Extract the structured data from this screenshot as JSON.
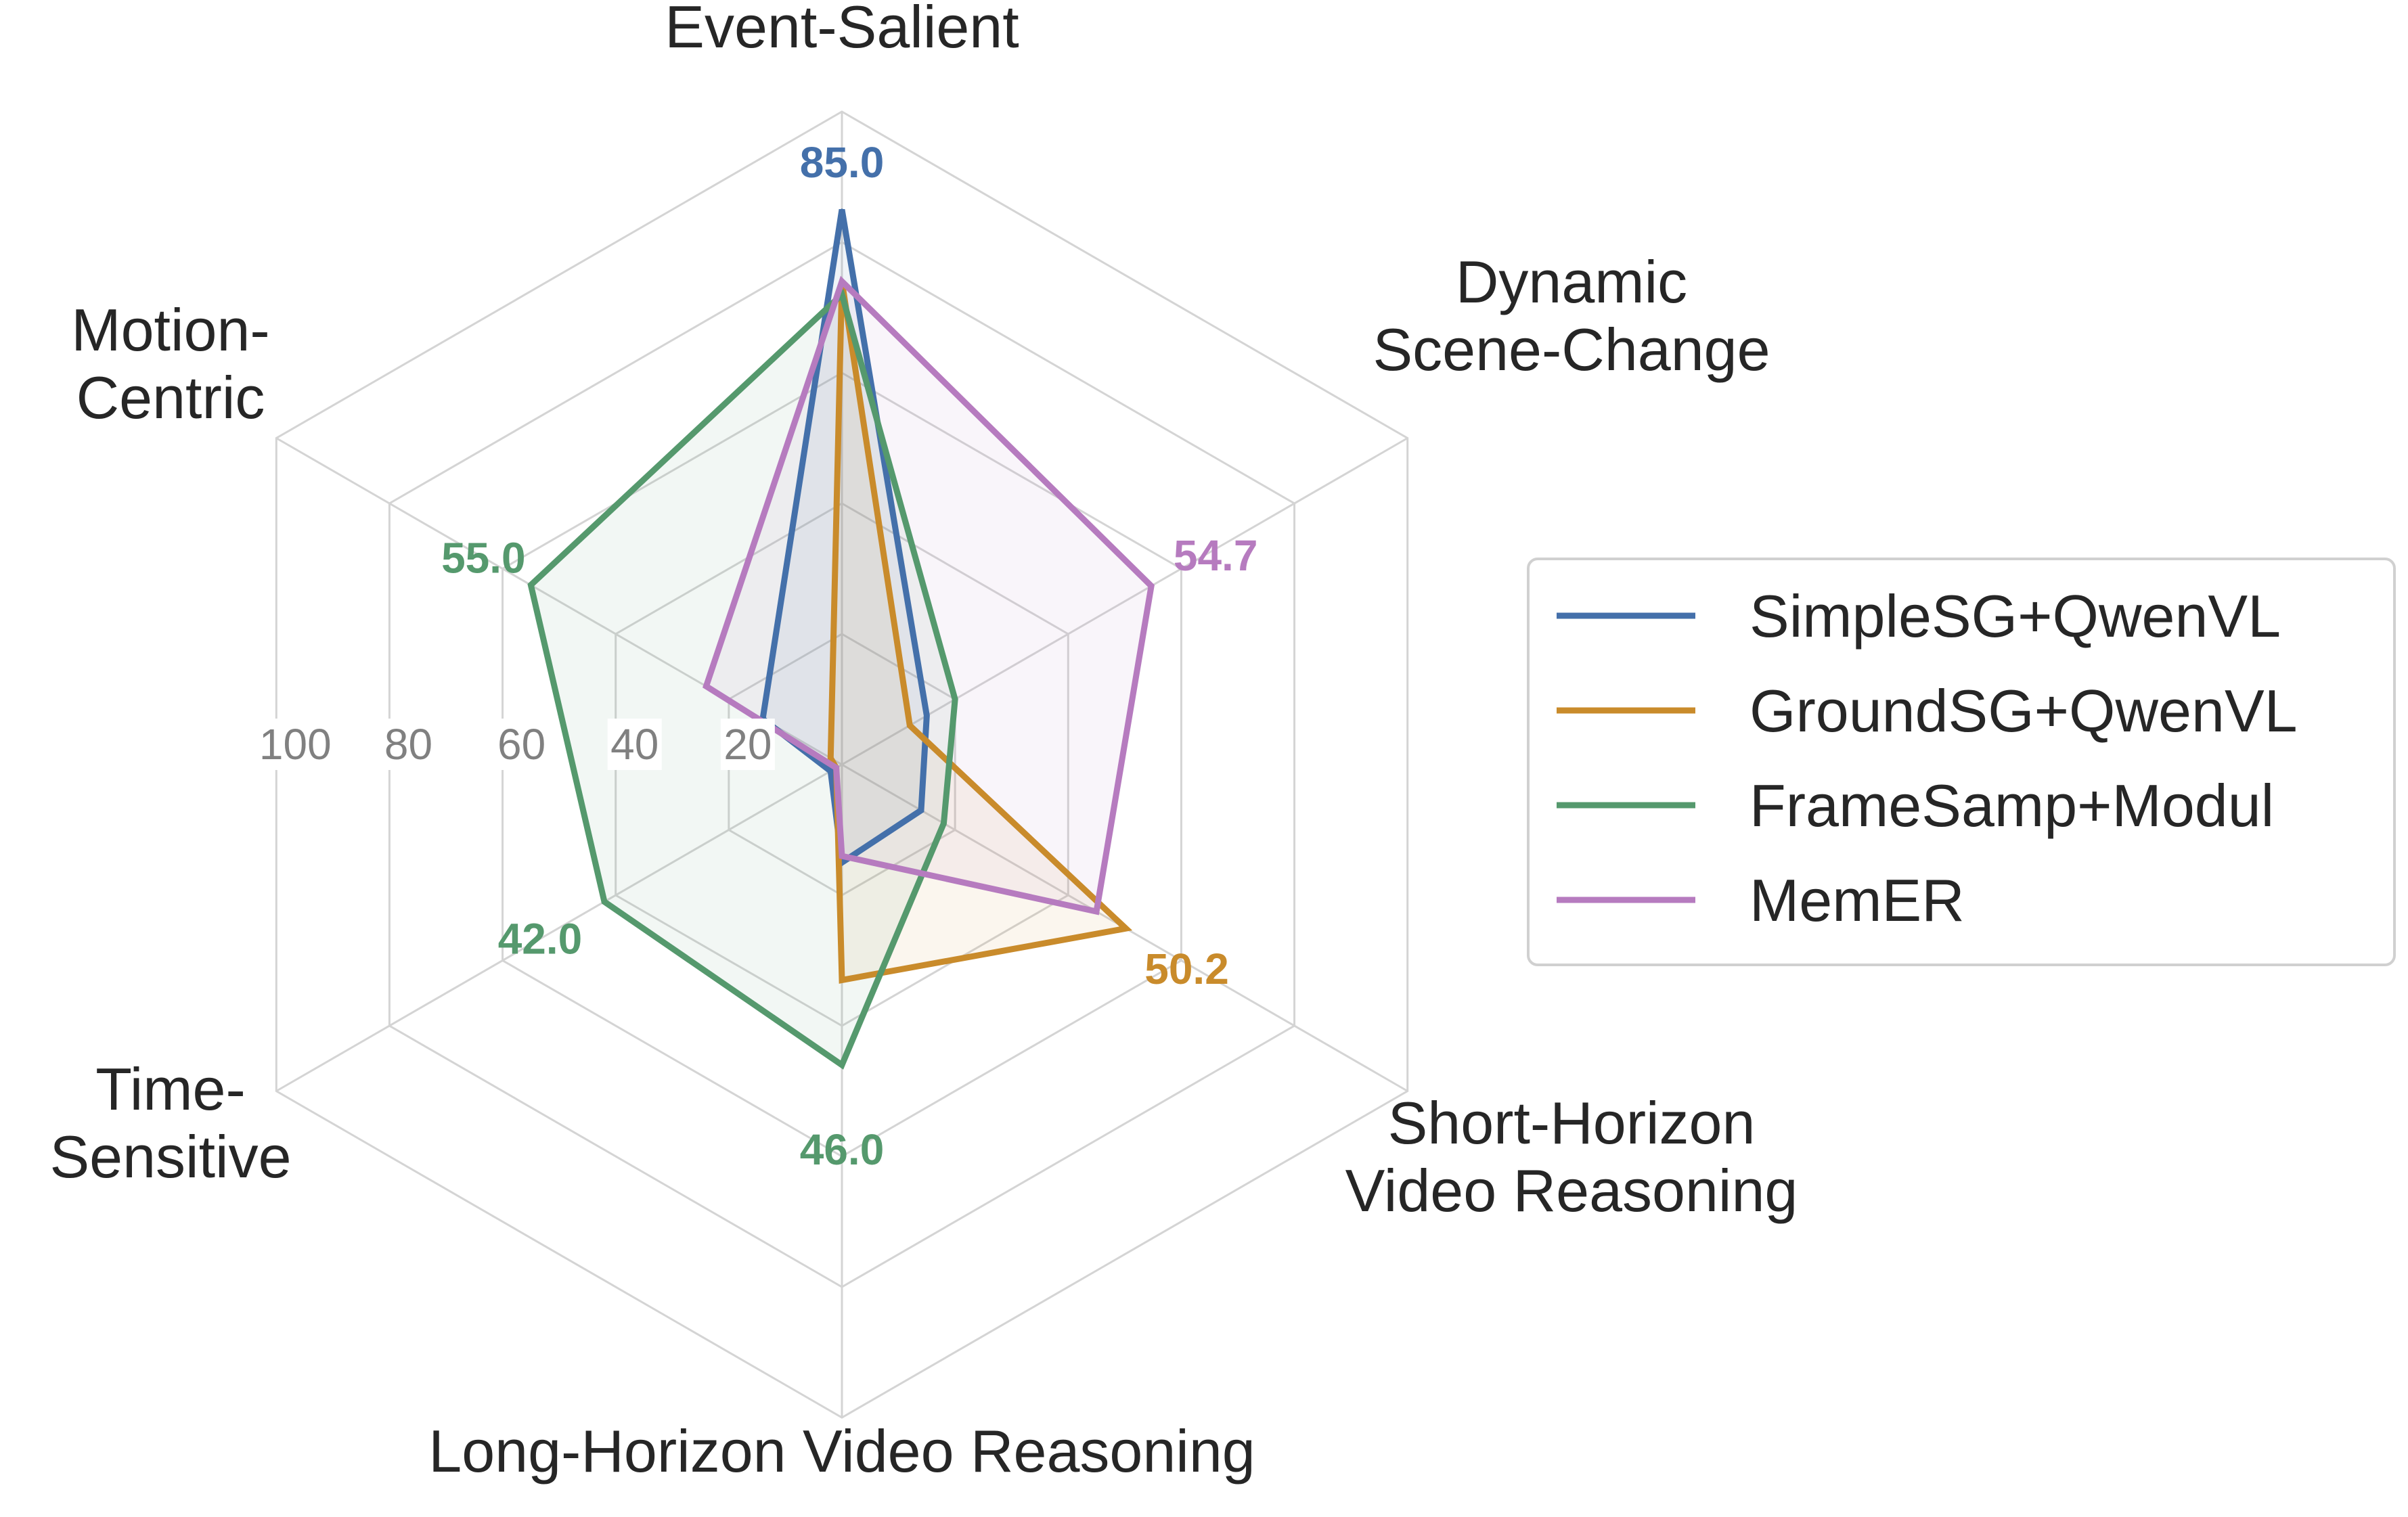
{
  "chart_data": {
    "type": "radar",
    "axes": [
      [
        "Event-Salient"
      ],
      [
        "Dynamic",
        "Scene-Change"
      ],
      [
        "Short-Horizon",
        "Video Reasoning"
      ],
      [
        "Long-Horizon Video Reasoning"
      ],
      [
        "Time-",
        "Sensitive"
      ],
      [
        "Motion-",
        "Centric"
      ]
    ],
    "rmax": 100,
    "rticks": [
      20,
      40,
      60,
      80,
      100
    ],
    "rtick_labels": [
      "20",
      "40",
      "60",
      "80",
      "100"
    ],
    "grid": true,
    "series": [
      {
        "name": "SimpleSG+QwenVL",
        "color": "#4470aa",
        "values": [
          85.0,
          15.0,
          14.0,
          15.0,
          2.0,
          14.0
        ]
      },
      {
        "name": "GroundSG+QwenVL",
        "color": "#c98b2b",
        "values": [
          74.0,
          12.0,
          50.2,
          33.0,
          1.0,
          2.0
        ]
      },
      {
        "name": "FrameSamp+Modul",
        "color": "#55996d",
        "values": [
          72.0,
          20.0,
          18.0,
          46.0,
          42.0,
          55.0
        ]
      },
      {
        "name": "MemER",
        "color": "#b67bbf",
        "values": [
          74.0,
          54.7,
          45.0,
          14.0,
          1.0,
          24.0
        ]
      }
    ],
    "annotations": [
      {
        "text": "85.0",
        "axis": 0,
        "value": 85.0,
        "color": "#4470aa"
      },
      {
        "text": "54.7",
        "axis": 1,
        "value": 54.7,
        "color": "#b67bbf"
      },
      {
        "text": "50.2",
        "axis": 2,
        "value": 50.2,
        "color": "#c98b2b"
      },
      {
        "text": "46.0",
        "axis": 3,
        "value": 46.0,
        "color": "#55996d"
      },
      {
        "text": "42.0",
        "axis": 4,
        "value": 42.0,
        "color": "#55996d"
      },
      {
        "text": "55.0",
        "axis": 5,
        "value": 55.0,
        "color": "#55996d"
      }
    ],
    "legend_position": "right"
  }
}
